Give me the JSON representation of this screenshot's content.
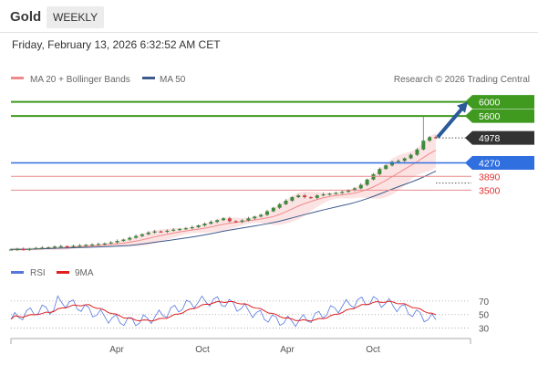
{
  "header": {
    "instrument": "Gold",
    "period": "WEEKLY",
    "timestamp": "Friday, February 13, 2026 6:32:52 AM CET"
  },
  "chart_data": [
    {
      "type": "candlestick",
      "legend": [
        {
          "label": "MA 20 + Bollinger Bands",
          "color": "#f08a8a"
        },
        {
          "label": "MA 50",
          "color": "#3d5a8c"
        }
      ],
      "credit": "Research © 2026 Trading Central",
      "x_ticks": [
        "Apr",
        "Oct",
        "Apr",
        "Oct"
      ],
      "ylim": [
        1700,
        6300
      ],
      "levels": [
        {
          "value": 6000,
          "label": "6000",
          "color": "#3f9a1f",
          "style": "filled"
        },
        {
          "value": 5600,
          "label": "5600",
          "color": "#3f9a1f",
          "style": "filled"
        },
        {
          "value": 4978,
          "label": "4978",
          "color": "#333333",
          "style": "filled-dotted"
        },
        {
          "value": 4270,
          "label": "4270",
          "color": "#2f6fe0",
          "style": "filled"
        },
        {
          "value": 3890,
          "label": "3890",
          "color": "#e03030",
          "style": "text"
        },
        {
          "value": 3500,
          "label": "3500",
          "color": "#e03030",
          "style": "text"
        }
      ],
      "prices": [
        1820,
        1830,
        1815,
        1840,
        1860,
        1870,
        1880,
        1900,
        1910,
        1905,
        1920,
        1930,
        1950,
        1960,
        1970,
        1990,
        2020,
        2060,
        2100,
        2150,
        2200,
        2250,
        2300,
        2330,
        2320,
        2350,
        2380,
        2400,
        2420,
        2450,
        2500,
        2550,
        2600,
        2650,
        2700,
        2620,
        2600,
        2640,
        2700,
        2750,
        2800,
        2900,
        3000,
        3100,
        3200,
        3300,
        3350,
        3300,
        3280,
        3350,
        3380,
        3400,
        3420,
        3450,
        3500,
        3550,
        3650,
        3800,
        3950,
        4100,
        4200,
        4300,
        4330,
        4400,
        4500,
        4650,
        4900,
        5000,
        4978
      ],
      "projection": {
        "from": 5000,
        "to": 6000
      }
    },
    {
      "type": "line",
      "series": [
        {
          "name": "RSI",
          "color": "#5577dd"
        },
        {
          "name": "9MA",
          "color": "#e02020"
        }
      ],
      "y_ticks": [
        70,
        50,
        30
      ],
      "ylim": [
        20,
        90
      ]
    }
  ]
}
